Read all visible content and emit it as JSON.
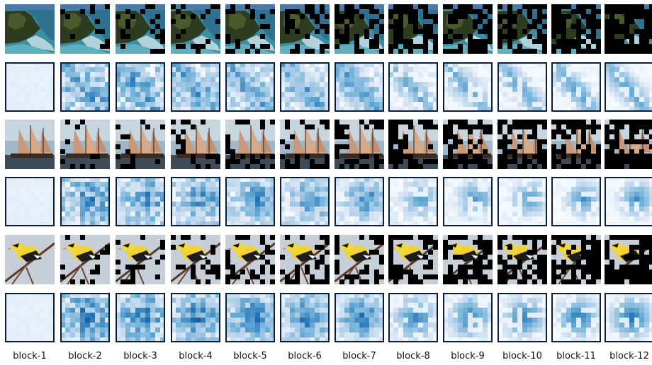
{
  "labels": [
    "block-1",
    "block-2",
    "block-3",
    "block-4",
    "block-5",
    "block-6",
    "block-7",
    "block-8",
    "block-9",
    "block-10",
    "block-11",
    "block-12"
  ],
  "rows": [
    {
      "type": "image",
      "scene": "coast"
    },
    {
      "type": "heatmap",
      "scene": "coast"
    },
    {
      "type": "image",
      "scene": "ship"
    },
    {
      "type": "heatmap",
      "scene": "ship"
    },
    {
      "type": "image",
      "scene": "bird"
    },
    {
      "type": "heatmap",
      "scene": "bird"
    }
  ]
}
